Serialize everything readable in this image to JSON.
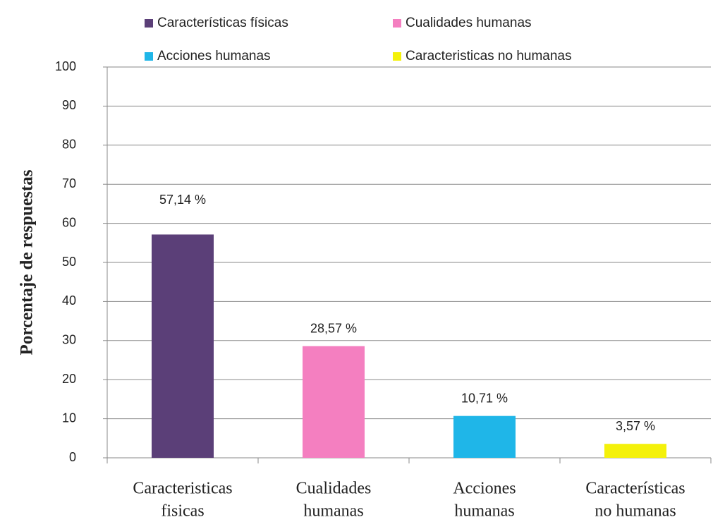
{
  "chart_data": {
    "type": "bar",
    "y_label": "Porcentaje de respuestas",
    "categories": [
      [
        "Caracteristicas",
        "fisicas"
      ],
      [
        "Cualidades",
        "humanas"
      ],
      [
        "Acciones",
        "humanas"
      ],
      [
        "Características",
        "no humanas"
      ]
    ],
    "series": [
      {
        "name": "Características físicas",
        "color": "#5b3f78",
        "values": [
          57.14,
          null,
          null,
          null
        ],
        "value_labels": [
          "57,14 %",
          null,
          null,
          null
        ]
      },
      {
        "name": "Cualidades humanas",
        "color": "#f47fc0",
        "values": [
          null,
          28.57,
          null,
          null
        ],
        "value_labels": [
          null,
          "28,57 %",
          null,
          null
        ]
      },
      {
        "name": "Acciones humanas",
        "color": "#1fb6e8",
        "values": [
          null,
          null,
          10.71,
          null
        ],
        "value_labels": [
          null,
          null,
          "10,71 %",
          null
        ]
      },
      {
        "name": "Caracteristicas no humanas",
        "color": "#f4f10a",
        "values": [
          null,
          null,
          null,
          3.57
        ],
        "value_labels": [
          null,
          null,
          null,
          "3,57 %"
        ]
      }
    ],
    "ylim": [
      0,
      100
    ],
    "yticks": [
      0,
      10,
      20,
      30,
      40,
      50,
      60,
      70,
      80,
      90,
      100
    ],
    "grid": true,
    "legend": "top"
  }
}
